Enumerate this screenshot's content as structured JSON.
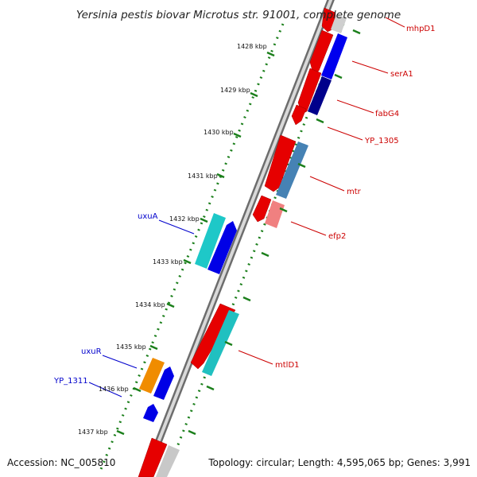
{
  "title": "Yersinia pestis biovar Microtus str. 91001, complete genome",
  "footer": {
    "accession": "Accession: NC_005810",
    "topology": "Topology: circular; Length: 4,595,065 bp; Genes: 3,991"
  },
  "colors": {
    "forward_label": "#cc0000",
    "reverse_label": "#0000cc",
    "tick": "#2e7d32",
    "backbone": "#8c8c8c"
  },
  "ticks": [
    "1428 kbp",
    "1429 kbp",
    "1430 kbp",
    "1431 kbp",
    "1432 kbp",
    "1433 kbp",
    "1434 kbp",
    "1435 kbp",
    "1436 kbp",
    "1437 kbp"
  ],
  "genes": {
    "forward": [
      "mhpD1",
      "serA1",
      "fabG4",
      "YP_1305",
      "mtr",
      "efp2",
      "mtlD1"
    ],
    "reverse": [
      "uxuA",
      "uxuR",
      "YP_1311"
    ]
  }
}
